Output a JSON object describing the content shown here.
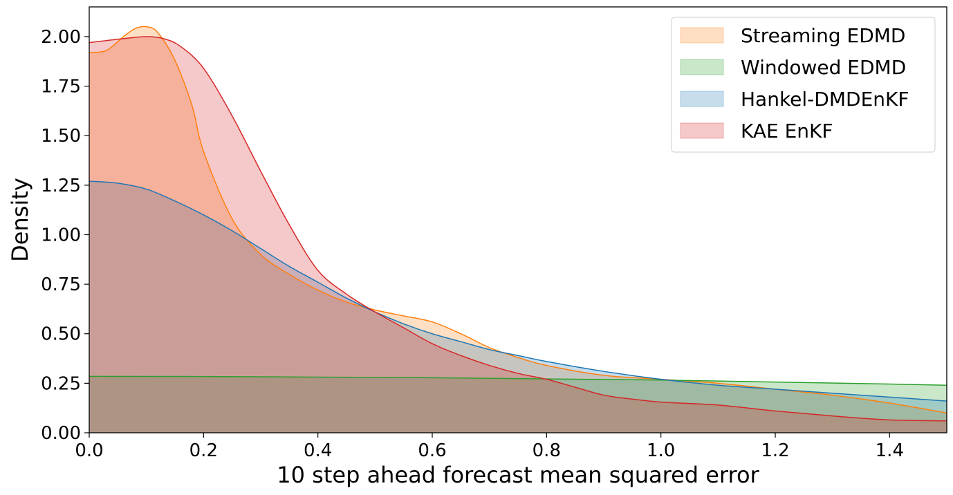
{
  "chart_data": {
    "type": "area",
    "title": "",
    "xlabel": "10 step ahead forecast mean squared error",
    "ylabel": "Density",
    "xlim": [
      0.0,
      1.5
    ],
    "ylim": [
      0.0,
      2.15
    ],
    "xticks": [
      "0.0",
      "0.2",
      "0.4",
      "0.6",
      "0.8",
      "1.0",
      "1.2",
      "1.4"
    ],
    "yticks": [
      "0.00",
      "0.25",
      "0.50",
      "0.75",
      "1.00",
      "1.25",
      "1.50",
      "1.75",
      "2.00"
    ],
    "grid": false,
    "legend_position": "top-right",
    "series": [
      {
        "name": "Streaming EDMD",
        "color": "#ff7f0e",
        "x": [
          0.0,
          0.03,
          0.06,
          0.08,
          0.1,
          0.12,
          0.15,
          0.18,
          0.2,
          0.25,
          0.3,
          0.35,
          0.4,
          0.45,
          0.5,
          0.55,
          0.6,
          0.65,
          0.7,
          0.75,
          0.8,
          0.9,
          1.0,
          1.1,
          1.2,
          1.3,
          1.4,
          1.5
        ],
        "y": [
          1.92,
          1.93,
          2.0,
          2.04,
          2.05,
          2.02,
          1.88,
          1.65,
          1.42,
          1.08,
          0.9,
          0.8,
          0.72,
          0.66,
          0.62,
          0.59,
          0.56,
          0.5,
          0.43,
          0.38,
          0.34,
          0.29,
          0.27,
          0.25,
          0.22,
          0.19,
          0.15,
          0.1
        ]
      },
      {
        "name": "Windowed EDMD",
        "color": "#2ca02c",
        "x": [
          0.0,
          0.2,
          0.4,
          0.6,
          0.8,
          1.0,
          1.2,
          1.4,
          1.5
        ],
        "y": [
          0.285,
          0.284,
          0.281,
          0.278,
          0.272,
          0.266,
          0.256,
          0.246,
          0.24
        ]
      },
      {
        "name": "Hankel-DMDEnKF",
        "color": "#1f77b4",
        "x": [
          0.0,
          0.05,
          0.1,
          0.15,
          0.2,
          0.25,
          0.3,
          0.35,
          0.4,
          0.45,
          0.5,
          0.55,
          0.6,
          0.65,
          0.7,
          0.75,
          0.8,
          0.9,
          1.0,
          1.1,
          1.2,
          1.3,
          1.4,
          1.5
        ],
        "y": [
          1.27,
          1.26,
          1.23,
          1.17,
          1.1,
          1.02,
          0.93,
          0.84,
          0.76,
          0.68,
          0.61,
          0.55,
          0.5,
          0.46,
          0.42,
          0.39,
          0.36,
          0.31,
          0.27,
          0.24,
          0.22,
          0.2,
          0.18,
          0.16
        ]
      },
      {
        "name": "KAE EnKF",
        "color": "#d62728",
        "x": [
          0.0,
          0.03,
          0.06,
          0.1,
          0.13,
          0.16,
          0.2,
          0.25,
          0.3,
          0.35,
          0.4,
          0.45,
          0.5,
          0.55,
          0.6,
          0.65,
          0.7,
          0.75,
          0.8,
          0.85,
          0.9,
          0.95,
          1.0,
          1.1,
          1.2,
          1.3,
          1.4,
          1.5
        ],
        "y": [
          1.97,
          1.98,
          1.99,
          2.0,
          1.99,
          1.95,
          1.84,
          1.6,
          1.32,
          1.05,
          0.82,
          0.7,
          0.61,
          0.53,
          0.45,
          0.39,
          0.34,
          0.3,
          0.27,
          0.23,
          0.19,
          0.17,
          0.155,
          0.14,
          0.11,
          0.085,
          0.065,
          0.06
        ]
      }
    ]
  }
}
